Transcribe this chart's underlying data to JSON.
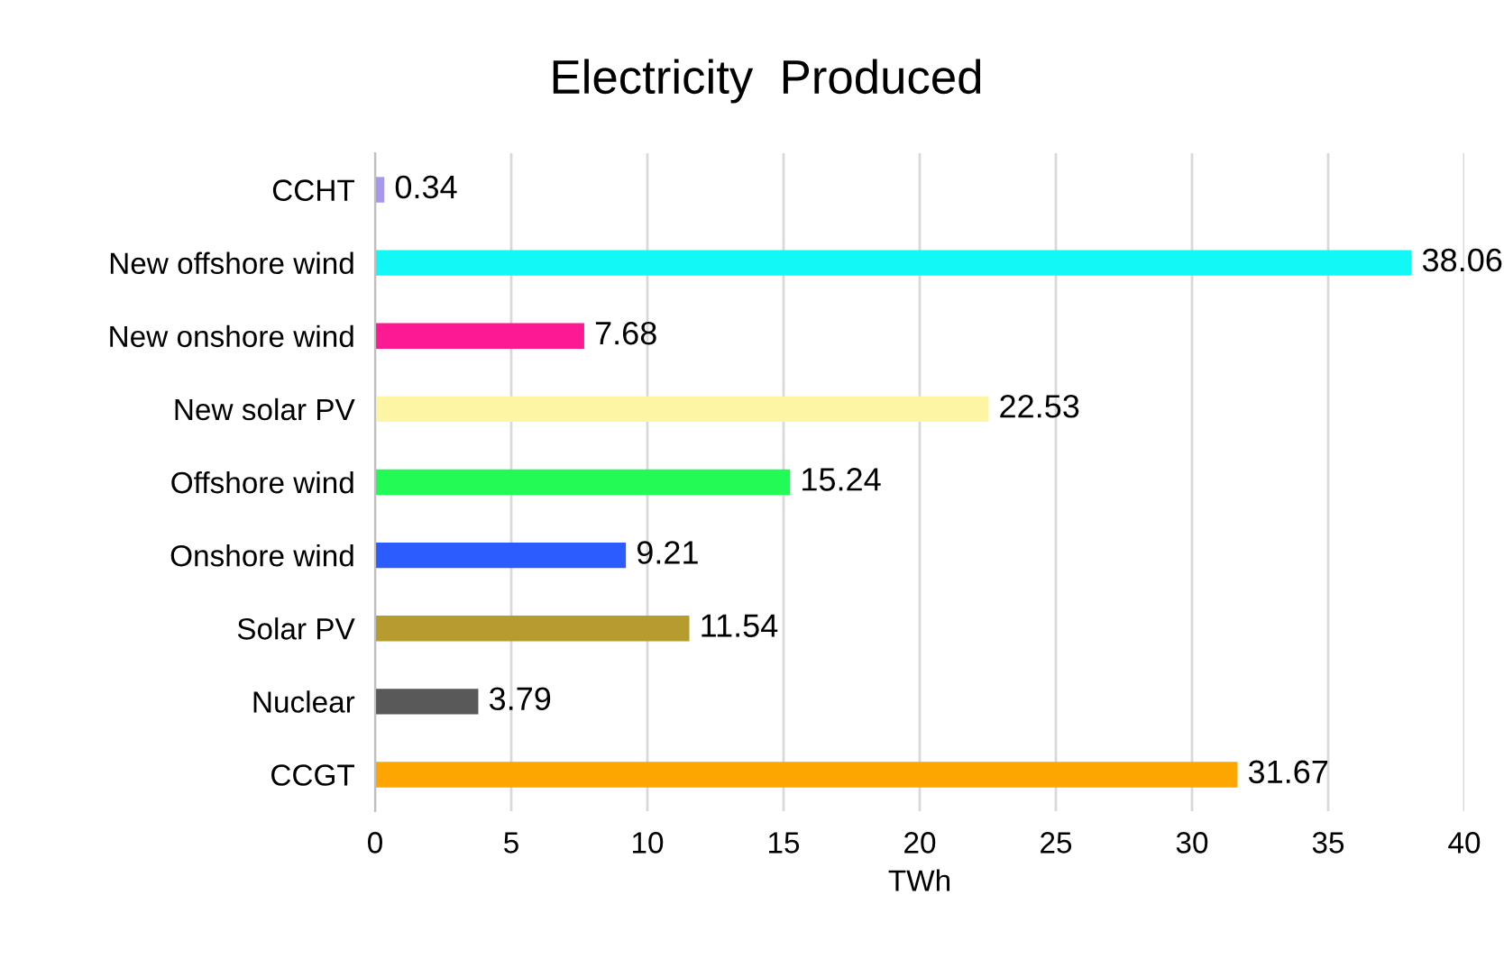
{
  "chart_data": {
    "type": "bar",
    "orientation": "horizontal",
    "title": "Electricity  Produced",
    "xlabel": "TWh",
    "categories": [
      "CCHT",
      "New offshore wind",
      "New onshore wind",
      "New solar PV",
      "Offshore wind",
      "Onshore wind",
      "Solar PV",
      "Nuclear",
      "CCGT"
    ],
    "values": [
      0.34,
      38.06,
      7.68,
      22.53,
      15.24,
      9.21,
      11.54,
      3.79,
      31.67
    ],
    "colors": [
      "#a897ee",
      "#11f8f6",
      "#fc1a93",
      "#fef5a4",
      "#22fb55",
      "#2c5cfd",
      "#b69b2e",
      "#595959",
      "#fda602"
    ],
    "xlim": [
      0,
      40
    ],
    "xticks": [
      0,
      5,
      10,
      15,
      20,
      25,
      30,
      35,
      40
    ],
    "grid": "x",
    "data_labels": true
  }
}
